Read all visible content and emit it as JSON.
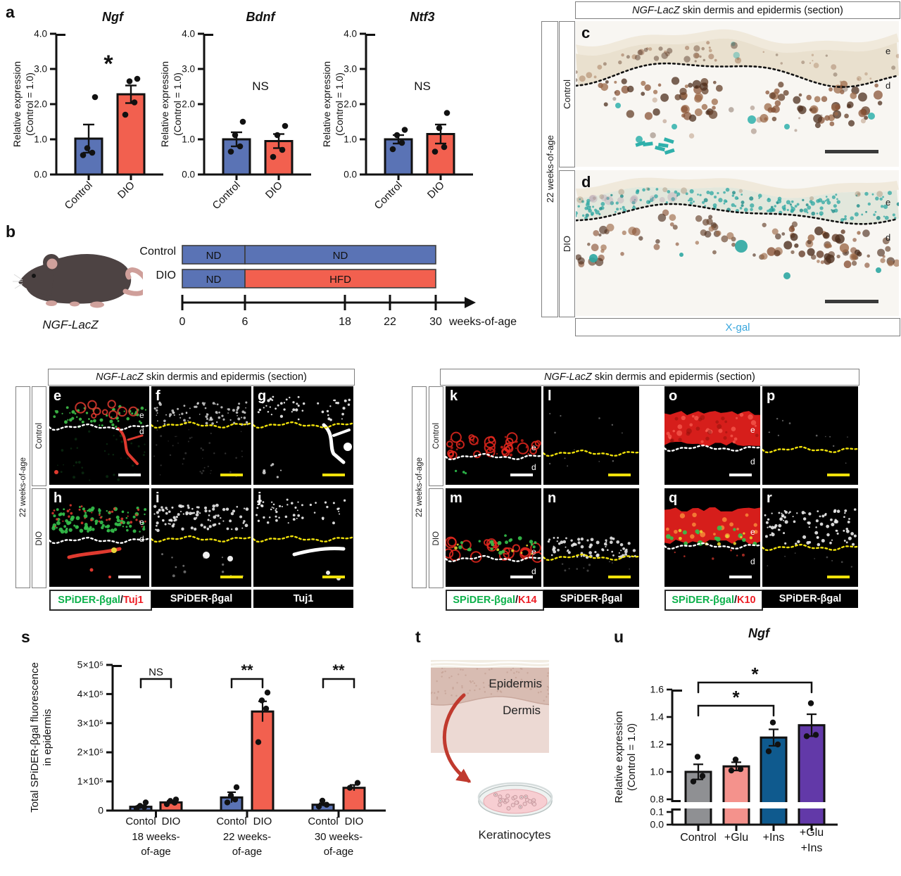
{
  "letters": {
    "a": "a",
    "b": "b",
    "c": "c",
    "d": "d",
    "e": "e",
    "f": "f",
    "g": "g",
    "h": "h",
    "i": "i",
    "j": "j",
    "k": "k",
    "l": "l",
    "m": "m",
    "n": "n",
    "o": "o",
    "p": "p",
    "q": "q",
    "r": "r",
    "s": "s",
    "t": "t",
    "u": "u"
  },
  "edge": {
    "epidermis": "e",
    "dermis": "d"
  },
  "section_header": {
    "gene": "NGF-LacZ",
    "rest": " skin dermis and epidermis (section)"
  },
  "age_label": "22 weeks-of-age",
  "group_labels": {
    "control": "Control",
    "dio": "DIO"
  },
  "xgal_label": "X-gal",
  "colors": {
    "bar_blue": "#5a73b5",
    "bar_red": "#f2604f",
    "xgal": "#38a6dd",
    "spider_green": "#0db14b",
    "marker_red": "#ed1c24",
    "annotation_yellow": "#f0e10a",
    "gray": "#8f9093",
    "salmon": "#f4928c",
    "ins_blue": "#0f5a8e",
    "glu_ins_purple": "#6239a8"
  },
  "stain_labels": {
    "tuj1_merge": [
      {
        "text": "SPiDER-βgal",
        "color": "#0db14b"
      },
      {
        "text": "/",
        "color": "#111111"
      },
      {
        "text": "Tuj1",
        "color": "#ed1c24"
      }
    ],
    "k14_merge": [
      {
        "text": "SPiDER-βgal",
        "color": "#0db14b"
      },
      {
        "text": "/",
        "color": "#111111"
      },
      {
        "text": "K14",
        "color": "#ed1c24"
      }
    ],
    "k10_merge": [
      {
        "text": "SPiDER-βgal",
        "color": "#0db14b"
      },
      {
        "text": "/",
        "color": "#111111"
      },
      {
        "text": "K10",
        "color": "#ed1c24"
      }
    ],
    "spider": "SPiDER-βgal",
    "tuj1": "Tuj1"
  },
  "panel_b": {
    "mouse_label": "NGF-LacZ",
    "rows": [
      {
        "label": "Control",
        "segments": [
          {
            "text": "ND",
            "weeks": [
              0,
              6
            ],
            "color": "#5a73b5",
            "text_color": "#ffffff"
          },
          {
            "text": "ND",
            "weeks": [
              6,
              30
            ],
            "color": "#5a73b5",
            "text_color": "#ffffff"
          }
        ]
      },
      {
        "label": "DIO",
        "segments": [
          {
            "text": "ND",
            "weeks": [
              0,
              6
            ],
            "color": "#5a73b5",
            "text_color": "#ffffff"
          },
          {
            "text": "HFD",
            "weeks": [
              6,
              30
            ],
            "color": "#f2604f",
            "text_color": "#111111"
          }
        ]
      }
    ],
    "ticks": [
      {
        "week": 0,
        "label": "0"
      },
      {
        "week": 6,
        "label": "6"
      },
      {
        "week": 18,
        "label": "18"
      },
      {
        "week": 22,
        "label": "22"
      },
      {
        "week": 30,
        "label": "30"
      }
    ],
    "axis_label": "weeks-of-age"
  },
  "panel_t": {
    "epidermis": "Epidermis",
    "dermis": "Dermis",
    "cells": "Keratinocytes"
  },
  "chart_data": [
    {
      "id": "a-ngf",
      "type": "bar",
      "title": "Ngf",
      "ylabel": [
        "Relative expression",
        "(Control = 1.0)"
      ],
      "ylim": [
        0,
        4
      ],
      "yticks": [
        {
          "v": 0,
          "label": "0.0"
        },
        {
          "v": 1,
          "label": "1.0"
        },
        {
          "v": 2,
          "label": "2.0"
        },
        {
          "v": 3,
          "label": "3.0"
        },
        {
          "v": 4,
          "label": "4.0"
        }
      ],
      "categories": [
        "Control",
        "DIO"
      ],
      "values": [
        1.02,
        2.28
      ],
      "errors": [
        0.4,
        0.25
      ],
      "points": [
        [
          0.55,
          0.62,
          0.75,
          2.2
        ],
        [
          1.7,
          2.05,
          2.65,
          2.72
        ]
      ],
      "bar_colors": [
        "#5a73b5",
        "#f2604f"
      ],
      "significance": "*"
    },
    {
      "id": "a-bdnf",
      "type": "bar",
      "title": "Bdnf",
      "ylabel": [
        "Relative expression",
        "(Control = 1.0)"
      ],
      "ylim": [
        0,
        4
      ],
      "yticks": [
        {
          "v": 0,
          "label": "0.0"
        },
        {
          "v": 1,
          "label": "1.0"
        },
        {
          "v": 2,
          "label": "2.0"
        },
        {
          "v": 3,
          "label": "3.0"
        },
        {
          "v": 4,
          "label": "4.0"
        }
      ],
      "categories": [
        "Control",
        "DIO"
      ],
      "values": [
        1.0,
        0.95
      ],
      "errors": [
        0.2,
        0.2
      ],
      "points": [
        [
          0.65,
          0.8,
          1.12,
          1.5
        ],
        [
          0.5,
          0.7,
          1.12,
          1.38
        ]
      ],
      "bar_colors": [
        "#5a73b5",
        "#f2604f"
      ],
      "significance": "NS"
    },
    {
      "id": "a-ntf3",
      "type": "bar",
      "title": "Ntf3",
      "ylabel": [
        "Relative expression",
        "(Control = 1.0)"
      ],
      "ylim": [
        0,
        4
      ],
      "yticks": [
        {
          "v": 0,
          "label": "0.0"
        },
        {
          "v": 1,
          "label": "1.0"
        },
        {
          "v": 2,
          "label": "2.0"
        },
        {
          "v": 3,
          "label": "3.0"
        },
        {
          "v": 4,
          "label": "4.0"
        }
      ],
      "categories": [
        "Control",
        "DIO"
      ],
      "values": [
        1.0,
        1.15
      ],
      "errors": [
        0.12,
        0.27
      ],
      "points": [
        [
          0.72,
          0.9,
          1.12,
          1.27
        ],
        [
          0.65,
          0.78,
          1.32,
          1.75
        ]
      ],
      "bar_colors": [
        "#5a73b5",
        "#f2604f"
      ],
      "significance": "NS"
    },
    {
      "id": "s-fluorescence",
      "type": "grouped-bar",
      "title": "",
      "ylabel": [
        "Total SPiDER-βgal fluorescence",
        "in epidermis"
      ],
      "ylim": [
        0,
        500000
      ],
      "yticks": [
        {
          "v": 0,
          "label": "0"
        },
        {
          "v": 100000,
          "label": "1×10⁵"
        },
        {
          "v": 200000,
          "label": "2×10⁵"
        },
        {
          "v": 300000,
          "label": "3×10⁵"
        },
        {
          "v": 400000,
          "label": "4×10⁵"
        },
        {
          "v": 500000,
          "label": "5×10⁵"
        }
      ],
      "group_categories": [
        "Contol",
        "DIO"
      ],
      "groups": [
        {
          "label": [
            "18 weeks-",
            "of-age"
          ],
          "values": [
            13000,
            28000
          ],
          "errors": [
            4000,
            5000
          ],
          "points": [
            [
              8000,
              12000,
              16000,
              28000
            ],
            [
              22000,
              27000,
              33000,
              38000
            ]
          ],
          "significance": "NS"
        },
        {
          "label": [
            "22 weeks-",
            "of-age"
          ],
          "values": [
            45000,
            340000
          ],
          "errors": [
            18000,
            35000
          ],
          "points": [
            [
              28000,
              38000,
              52000,
              80000
            ],
            [
              235000,
              350000,
              378000,
              405000
            ]
          ],
          "significance": "**"
        },
        {
          "label": [
            "30 weeks-",
            "of-age"
          ],
          "values": [
            20000,
            78000
          ],
          "errors": [
            5000,
            10000
          ],
          "points": [
            [
              14000,
              20000,
              34000
            ],
            [
              78000,
              95000
            ]
          ],
          "significance": "**"
        }
      ],
      "bar_colors": [
        "#5a73b5",
        "#f2604f"
      ]
    },
    {
      "id": "u-ngf",
      "type": "broken-bar",
      "title": "Ngf",
      "ylabel": [
        "Relative expression",
        "(Control = 1.0)"
      ],
      "upper_ticks": [
        {
          "v": 0.8,
          "label": "0.8"
        },
        {
          "v": 1.0,
          "label": "1.0"
        },
        {
          "v": 1.2,
          "label": "1.2"
        },
        {
          "v": 1.4,
          "label": "1.4"
        },
        {
          "v": 1.6,
          "label": "1.6"
        }
      ],
      "lower_ticks": [
        {
          "v": 0.0,
          "label": "0.0"
        },
        {
          "v": 0.1,
          "label": "0.1"
        }
      ],
      "categories": [
        "Control",
        "+Glu",
        "+Ins",
        "+Glu\n+Ins"
      ],
      "values": [
        1.0,
        1.04,
        1.25,
        1.34
      ],
      "errors": [
        0.055,
        0.03,
        0.06,
        0.08
      ],
      "points": [
        [
          0.93,
          0.97,
          1.11
        ],
        [
          1.01,
          1.02,
          1.09
        ],
        [
          1.15,
          1.2,
          1.36
        ],
        [
          1.26,
          1.27,
          1.5
        ]
      ],
      "bar_colors": [
        "#8f9093",
        "#f4928c",
        "#0f5a8e",
        "#6239a8"
      ],
      "significance": [
        {
          "from": 0,
          "to": 2,
          "label": "*"
        },
        {
          "from": 0,
          "to": 3,
          "label": "*"
        }
      ]
    }
  ]
}
